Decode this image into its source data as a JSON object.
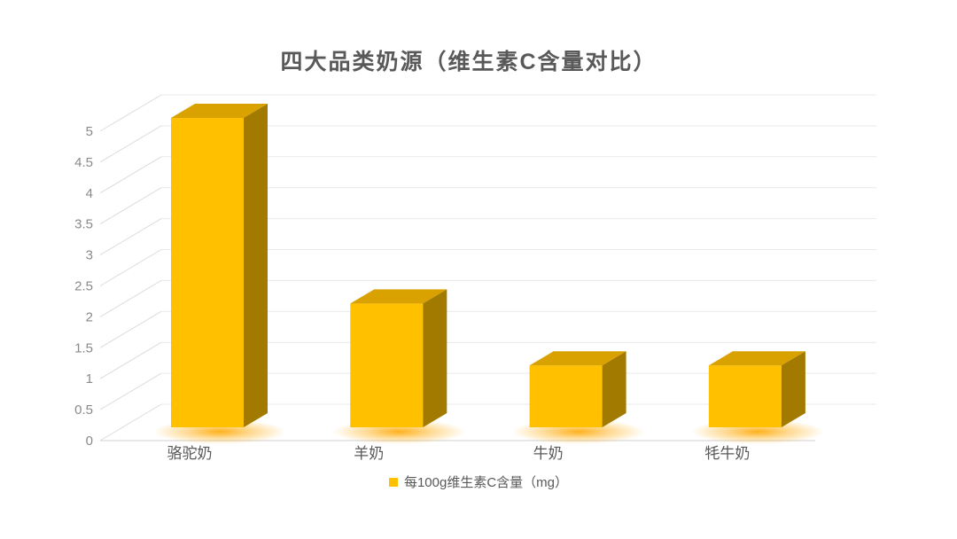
{
  "chart_data": {
    "type": "bar",
    "style": "3d-column",
    "title": "四大品类奶源（维生素C含量对比）",
    "categories": [
      "骆驼奶",
      "羊奶",
      "牛奶",
      "牦牛奶"
    ],
    "values": [
      5,
      2,
      1,
      1
    ],
    "series": [
      {
        "name": "每100g维生素C含量（mg）",
        "values": [
          5,
          2,
          1,
          1
        ]
      }
    ],
    "legend": "每100g维生素C含量（mg）",
    "legend_position": "bottom",
    "xlabel": "",
    "ylabel": "",
    "ylim": [
      0,
      5
    ],
    "ytick_step": 0.5,
    "yticks": [
      "0",
      "0.5",
      "1",
      "1.5",
      "2",
      "2.5",
      "3",
      "3.5",
      "4",
      "4.5",
      "5"
    ],
    "grid": true,
    "colors": {
      "bar_front": "#FFC000",
      "bar_top": "#D9A200",
      "bar_side": "#A37A00",
      "glow": "#FFA800",
      "gridline_back": "#E9E9E9",
      "gridline_side": "#DCDCDC",
      "floor_line": "#D9D9D9",
      "title_text": "#595959",
      "axis_text": "#8A8A8A",
      "category_text": "#595959",
      "legend_text": "#595959",
      "background": "#FFFFFF"
    }
  }
}
